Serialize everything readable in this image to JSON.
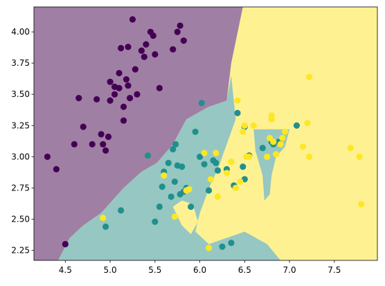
{
  "chart_data": {
    "type": "scatter",
    "title": "",
    "xlabel": "",
    "ylabel": "",
    "xlim": [
      4.15,
      7.98
    ],
    "ylim": [
      2.17,
      4.2
    ],
    "grid": false,
    "x_ticks": [
      4.5,
      5.0,
      5.5,
      6.0,
      6.5,
      7.0,
      7.5
    ],
    "x_tick_labels": [
      "4.5",
      "5.0",
      "5.5",
      "6.0",
      "6.5",
      "7.0",
      "7.5"
    ],
    "y_ticks": [
      2.25,
      2.5,
      2.75,
      3.0,
      3.25,
      3.5,
      3.75,
      4.0
    ],
    "y_tick_labels": [
      "2.25",
      "2.50",
      "2.75",
      "3.00",
      "3.25",
      "3.50",
      "3.75",
      "4.00"
    ],
    "background_regions": [
      {
        "class_index": 0,
        "color": "#a07fa4",
        "polygon": [
          [
            4.15,
            4.2
          ],
          [
            6.48,
            4.2
          ],
          [
            6.35,
            3.75
          ],
          [
            6.3,
            3.45
          ],
          [
            6.1,
            3.4
          ],
          [
            5.85,
            3.3
          ],
          [
            5.7,
            3.1
          ],
          [
            5.52,
            2.95
          ],
          [
            5.35,
            2.88
          ],
          [
            5.15,
            2.75
          ],
          [
            4.9,
            2.55
          ],
          [
            4.7,
            2.45
          ],
          [
            4.55,
            2.35
          ],
          [
            4.42,
            2.17
          ],
          [
            4.15,
            2.17
          ]
        ]
      },
      {
        "class_index": 1,
        "color": "#96c7c2",
        "polygon": [
          [
            4.42,
            2.17
          ],
          [
            4.55,
            2.35
          ],
          [
            4.7,
            2.45
          ],
          [
            4.9,
            2.55
          ],
          [
            5.15,
            2.75
          ],
          [
            5.35,
            2.88
          ],
          [
            5.52,
            2.95
          ],
          [
            5.7,
            3.1
          ],
          [
            5.85,
            3.3
          ],
          [
            6.1,
            3.4
          ],
          [
            6.3,
            3.45
          ],
          [
            6.35,
            3.65
          ],
          [
            6.4,
            3.3
          ],
          [
            6.3,
            3.1
          ],
          [
            6.25,
            3.0
          ],
          [
            6.2,
            2.9
          ],
          [
            6.12,
            2.78
          ],
          [
            6.0,
            2.55
          ],
          [
            5.95,
            2.4
          ],
          [
            6.1,
            2.3
          ],
          [
            6.5,
            2.4
          ],
          [
            6.75,
            2.3
          ],
          [
            6.9,
            2.17
          ]
        ]
      },
      {
        "class_index": 1,
        "color": "#96c7c2",
        "polygon": [
          [
            6.6,
            3.22
          ],
          [
            7.0,
            3.22
          ],
          [
            6.95,
            3.08
          ],
          [
            6.85,
            3.0
          ],
          [
            6.8,
            2.85
          ],
          [
            6.78,
            2.7
          ],
          [
            6.72,
            2.65
          ],
          [
            6.7,
            2.85
          ],
          [
            6.62,
            3.05
          ]
        ]
      },
      {
        "class_index": 2,
        "color": "#fdf192",
        "polygon": [
          [
            5.7,
            2.6
          ],
          [
            5.8,
            2.45
          ],
          [
            5.9,
            2.38
          ],
          [
            5.98,
            2.48
          ],
          [
            5.92,
            2.62
          ],
          [
            5.8,
            2.65
          ]
        ]
      }
    ],
    "plot_background": "#fdf192",
    "series": [
      {
        "color": "#440154",
        "points": [
          [
            4.3,
            3.0
          ],
          [
            4.4,
            2.9
          ],
          [
            4.5,
            2.3
          ],
          [
            4.6,
            3.1
          ],
          [
            4.65,
            3.47
          ],
          [
            4.7,
            3.24
          ],
          [
            4.8,
            3.1
          ],
          [
            4.85,
            3.46
          ],
          [
            4.9,
            3.18
          ],
          [
            4.92,
            3.1
          ],
          [
            4.95,
            3.05
          ],
          [
            4.98,
            3.16
          ],
          [
            5.0,
            3.45
          ],
          [
            5.0,
            3.6
          ],
          [
            5.05,
            3.5
          ],
          [
            5.05,
            3.56
          ],
          [
            5.1,
            3.67
          ],
          [
            5.1,
            3.55
          ],
          [
            5.12,
            3.87
          ],
          [
            5.15,
            3.4
          ],
          [
            5.15,
            3.29
          ],
          [
            5.18,
            3.62
          ],
          [
            5.2,
            3.88
          ],
          [
            5.2,
            3.57
          ],
          [
            5.22,
            3.47
          ],
          [
            5.25,
            4.1
          ],
          [
            5.28,
            3.7
          ],
          [
            5.3,
            3.5
          ],
          [
            5.35,
            3.85
          ],
          [
            5.38,
            3.8
          ],
          [
            5.4,
            3.9
          ],
          [
            5.45,
            4.0
          ],
          [
            5.48,
            3.97
          ],
          [
            5.5,
            3.82
          ],
          [
            5.55,
            3.55
          ],
          [
            5.7,
            3.86
          ],
          [
            5.75,
            4.0
          ],
          [
            5.78,
            4.05
          ],
          [
            5.82,
            3.93
          ]
        ]
      },
      {
        "color": "#21908d",
        "points": [
          [
            4.95,
            2.44
          ],
          [
            5.12,
            2.57
          ],
          [
            5.42,
            3.01
          ],
          [
            5.5,
            2.48
          ],
          [
            5.55,
            2.6
          ],
          [
            5.58,
            2.76
          ],
          [
            5.6,
            2.88
          ],
          [
            5.65,
            2.95
          ],
          [
            5.68,
            2.68
          ],
          [
            5.7,
            3.06
          ],
          [
            5.72,
            2.8
          ],
          [
            5.73,
            3.1
          ],
          [
            5.75,
            2.93
          ],
          [
            5.78,
            2.7
          ],
          [
            5.8,
            2.92
          ],
          [
            5.82,
            2.72
          ],
          [
            5.85,
            2.75
          ],
          [
            5.9,
            2.6
          ],
          [
            5.95,
            3.2
          ],
          [
            6.0,
            3.0
          ],
          [
            6.02,
            3.43
          ],
          [
            6.05,
            2.94
          ],
          [
            6.1,
            2.73
          ],
          [
            6.12,
            2.82
          ],
          [
            6.15,
            2.97
          ],
          [
            6.18,
            2.95
          ],
          [
            6.2,
            2.89
          ],
          [
            6.25,
            2.28
          ],
          [
            6.3,
            2.9
          ],
          [
            6.35,
            2.31
          ],
          [
            6.38,
            2.77
          ],
          [
            6.42,
            3.35
          ],
          [
            6.48,
            2.92
          ],
          [
            6.5,
            3.24
          ],
          [
            6.5,
            2.82
          ],
          [
            6.55,
            3.01
          ],
          [
            6.7,
            3.07
          ],
          [
            6.8,
            3.12
          ],
          [
            6.82,
            3.1
          ],
          [
            6.88,
            3.12
          ],
          [
            7.08,
            3.25
          ]
        ]
      },
      {
        "color": "#fde725",
        "points": [
          [
            4.92,
            2.51
          ],
          [
            5.6,
            2.85
          ],
          [
            5.72,
            2.52
          ],
          [
            5.85,
            2.73
          ],
          [
            5.88,
            2.74
          ],
          [
            6.05,
            3.03
          ],
          [
            6.1,
            2.27
          ],
          [
            6.12,
            2.82
          ],
          [
            6.18,
            3.03
          ],
          [
            6.2,
            2.68
          ],
          [
            6.3,
            2.87
          ],
          [
            6.35,
            2.96
          ],
          [
            6.4,
            2.75
          ],
          [
            6.42,
            3.45
          ],
          [
            6.45,
            2.8
          ],
          [
            6.48,
            3.2
          ],
          [
            6.5,
            3.25
          ],
          [
            6.52,
            3.0
          ],
          [
            6.55,
            3.0
          ],
          [
            6.6,
            3.25
          ],
          [
            6.75,
            3.0
          ],
          [
            6.78,
            3.15
          ],
          [
            6.8,
            3.33
          ],
          [
            6.8,
            3.3
          ],
          [
            6.82,
            3.12
          ],
          [
            6.85,
            3.02
          ],
          [
            6.9,
            3.1
          ],
          [
            6.92,
            3.15
          ],
          [
            6.95,
            3.2
          ],
          [
            7.15,
            3.08
          ],
          [
            7.2,
            3.27
          ],
          [
            7.22,
            3.64
          ],
          [
            7.22,
            3.0
          ],
          [
            7.68,
            3.07
          ],
          [
            7.78,
            3.0
          ],
          [
            7.8,
            2.62
          ]
        ]
      }
    ]
  }
}
